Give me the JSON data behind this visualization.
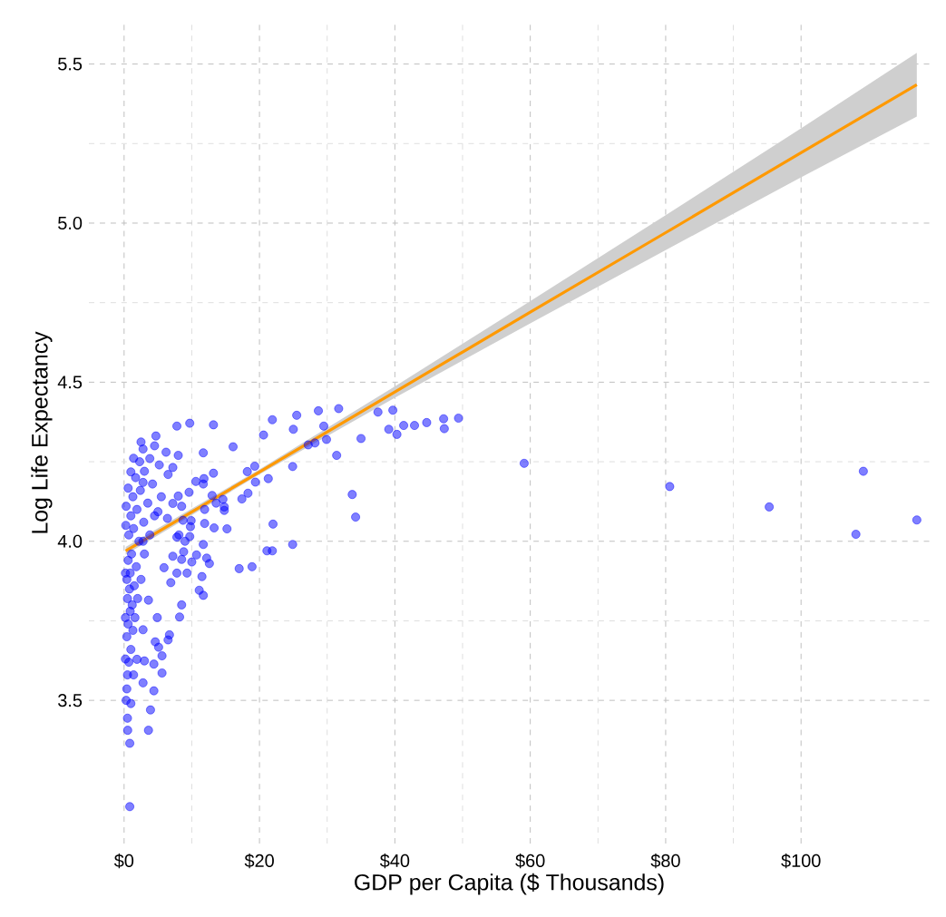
{
  "chart_data": {
    "type": "scatter",
    "xlabel": "GDP per Capita ($ Thousands)",
    "ylabel": "Log Life Expectancy",
    "xlim": [
      -5.2,
      119
    ],
    "ylim": [
      3.05,
      5.63
    ],
    "xticks": [
      {
        "value": 0,
        "label": "$0"
      },
      {
        "value": 20,
        "label": "$20"
      },
      {
        "value": 40,
        "label": "$40"
      },
      {
        "value": 60,
        "label": "$60"
      },
      {
        "value": 80,
        "label": "$80"
      },
      {
        "value": 100,
        "label": "$100"
      }
    ],
    "yticks": [
      3.5,
      {
        "value": 4.0,
        "label": "4.0"
      },
      4.5,
      {
        "value": 5.0,
        "label": "5.0"
      },
      5.5
    ],
    "grid": true,
    "series": [
      {
        "marker": "circle",
        "color": "#0000ff",
        "x": [
          0.5,
          0.7,
          1.0,
          0.4,
          0.6,
          0.9,
          1.3,
          0.5,
          0.8,
          1.2,
          1.6,
          0.4,
          0.9,
          1.5,
          2.0,
          0.6,
          1.1,
          1.8,
          2.5,
          0.7,
          1.4,
          2.2,
          3.0,
          1.0,
          1.9,
          2.9,
          3.8,
          1.3,
          2.4,
          3.5,
          4.5,
          1.7,
          3.0,
          4.2,
          5.5,
          2.3,
          3.8,
          5.2,
          6.5,
          2.8,
          4.5,
          6.2,
          8.0,
          0.84,
          0.84,
          3.6,
          0.53,
          3.9,
          4.4,
          2.8,
          5.6,
          4.4,
          3.0,
          5.6,
          5.1,
          4.6,
          6.7,
          6.5,
          8.2,
          8.5,
          4.9,
          11.7,
          11.1,
          11.5,
          6.9,
          9.3,
          7.8,
          17.0,
          18.9,
          12.6,
          12.2,
          10.0,
          10.7,
          8.5,
          7.2,
          5.9,
          21.1,
          21.9,
          24.9,
          11.7,
          8.8,
          9.0,
          7.8,
          8.1,
          9.7,
          22.0,
          34.2,
          33.7,
          15.2,
          13.3,
          11.9,
          9.8,
          9.9,
          8.7,
          6.4,
          14.8,
          14.8,
          13.6,
          11.9,
          8.5,
          7.2,
          17.4,
          18.3,
          14.6,
          13.0,
          9.6,
          8.0,
          19.4,
          21.3,
          24.9,
          31.4,
          11.7,
          10.6,
          11.8,
          13.2,
          18.2,
          19.3,
          28.2,
          27.2,
          29.9,
          35.0,
          39.1,
          40.3,
          41.3,
          42.9,
          44.7,
          47.3,
          47.2,
          49.4,
          39.7,
          31.7,
          37.5,
          28.7,
          25.5,
          21.9,
          13.2,
          9.7,
          7.8,
          4.7,
          2.5,
          1.4,
          1.0,
          0.6,
          0.3,
          0.25,
          0.2,
          0.2,
          0.2,
          0.3,
          0.4,
          0.5,
          1.0,
          1.4,
          1.9,
          2.8,
          3.6,
          2.8,
          2.8,
          5.0,
          7.2,
          11.7,
          16.1,
          20.6,
          25.0,
          29.5,
          59.1,
          80.6,
          95.3,
          109.2,
          108.1,
          117.1
        ],
        "values": [
          3.58,
          3.62,
          3.66,
          3.7,
          3.74,
          3.78,
          3.72,
          3.82,
          3.85,
          3.8,
          3.76,
          3.88,
          3.9,
          3.86,
          3.82,
          3.94,
          3.96,
          3.92,
          3.88,
          4.02,
          4.04,
          4.0,
          3.96,
          4.08,
          4.1,
          4.06,
          4.02,
          4.14,
          4.16,
          4.12,
          4.08,
          4.2,
          4.22,
          4.18,
          4.14,
          4.25,
          4.26,
          4.24,
          4.21,
          4.29,
          4.3,
          4.28,
          4.27,
          3.166,
          3.365,
          3.406,
          3.406,
          3.47,
          3.53,
          3.555,
          3.586,
          3.614,
          3.624,
          3.64,
          3.667,
          3.684,
          3.706,
          3.69,
          3.762,
          3.8,
          3.76,
          3.83,
          3.846,
          3.889,
          3.87,
          3.9,
          3.9,
          3.914,
          3.92,
          3.93,
          3.947,
          3.935,
          3.957,
          3.943,
          3.953,
          3.917,
          3.97,
          3.97,
          3.99,
          3.99,
          3.967,
          4.0,
          4.013,
          4.02,
          4.015,
          4.054,
          4.076,
          4.147,
          4.039,
          4.042,
          4.056,
          4.046,
          4.065,
          4.066,
          4.072,
          4.097,
          4.108,
          4.12,
          4.1,
          4.11,
          4.119,
          4.133,
          4.151,
          4.132,
          4.144,
          4.154,
          4.142,
          4.186,
          4.197,
          4.235,
          4.27,
          4.18,
          4.188,
          4.197,
          4.214,
          4.219,
          4.236,
          4.309,
          4.303,
          4.32,
          4.323,
          4.352,
          4.336,
          4.364,
          4.364,
          4.373,
          4.354,
          4.385,
          4.387,
          4.412,
          4.417,
          4.406,
          4.41,
          4.396,
          4.382,
          4.366,
          4.371,
          4.362,
          4.331,
          4.312,
          4.261,
          4.218,
          4.167,
          4.11,
          4.05,
          3.9,
          3.76,
          3.63,
          3.5,
          3.536,
          3.444,
          3.49,
          3.58,
          3.629,
          3.722,
          3.815,
          4.0,
          4.185,
          4.093,
          4.232,
          4.278,
          4.297,
          4.334,
          4.352,
          4.362,
          4.245,
          4.172,
          4.108,
          4.22,
          4.022,
          4.067
        ]
      },
      {
        "type": "line",
        "marker": "none",
        "color": "#ff9900",
        "x": [
          0.24,
          20,
          40,
          60,
          80,
          100,
          117.1
        ],
        "values": [
          3.97,
          4.218,
          4.469,
          4.72,
          4.97,
          5.221,
          5.435
        ],
        "lower": [
          3.958,
          4.21,
          4.451,
          4.685,
          4.915,
          5.144,
          5.335
        ],
        "upper": [
          3.982,
          4.226,
          4.487,
          4.755,
          5.025,
          5.298,
          5.535
        ]
      }
    ]
  }
}
